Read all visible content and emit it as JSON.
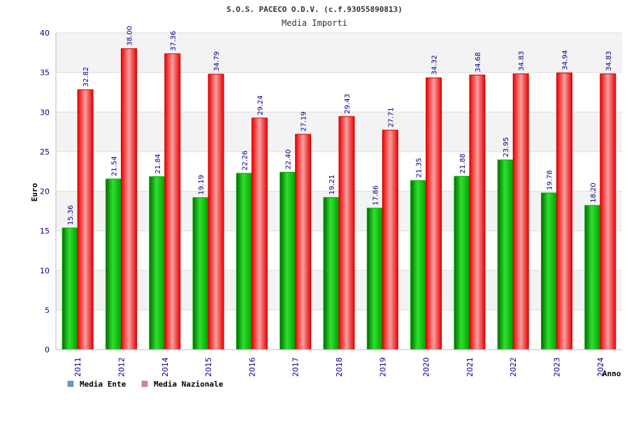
{
  "chart_data": {
    "type": "bar",
    "title": "S.O.S. PACECO O.D.V. (c.f.93055890813)",
    "subtitle": "Media Importi",
    "xlabel": "Anno",
    "ylabel": "Euro",
    "ylim": [
      0,
      40
    ],
    "yticks": [
      0,
      5,
      10,
      15,
      20,
      25,
      30,
      35,
      40
    ],
    "grid": true,
    "legend_position": "bottom-left",
    "categories": [
      "2011",
      "2012",
      "2014",
      "2015",
      "2016",
      "2017",
      "2018",
      "2019",
      "2020",
      "2021",
      "2022",
      "2023",
      "2024"
    ],
    "series": [
      {
        "name": "Media Ente",
        "color": "#00bb00",
        "legend_color": "#5b9bd5",
        "values": [
          15.36,
          21.54,
          21.84,
          19.19,
          22.26,
          22.4,
          19.21,
          17.86,
          21.35,
          21.88,
          23.95,
          19.78,
          18.2
        ],
        "labels": [
          "15.36",
          "21.54",
          "21.84",
          "19.19",
          "22.26",
          "22.40",
          "19.21",
          "17.86",
          "21.35",
          "21.88",
          "23.95",
          "19.78",
          "18.20"
        ]
      },
      {
        "name": "Media Nazionale",
        "color": "#ff0000",
        "legend_color": "#e07ab0",
        "values": [
          32.82,
          38.0,
          37.36,
          34.79,
          29.24,
          27.19,
          29.43,
          27.71,
          34.32,
          34.68,
          34.83,
          34.94,
          34.83
        ],
        "labels": [
          "32.82",
          "38.00",
          "37.36",
          "34.79",
          "29.24",
          "27.19",
          "29.43",
          "27.71",
          "34.32",
          "34.68",
          "34.83",
          "34.94",
          "34.83"
        ]
      }
    ]
  }
}
